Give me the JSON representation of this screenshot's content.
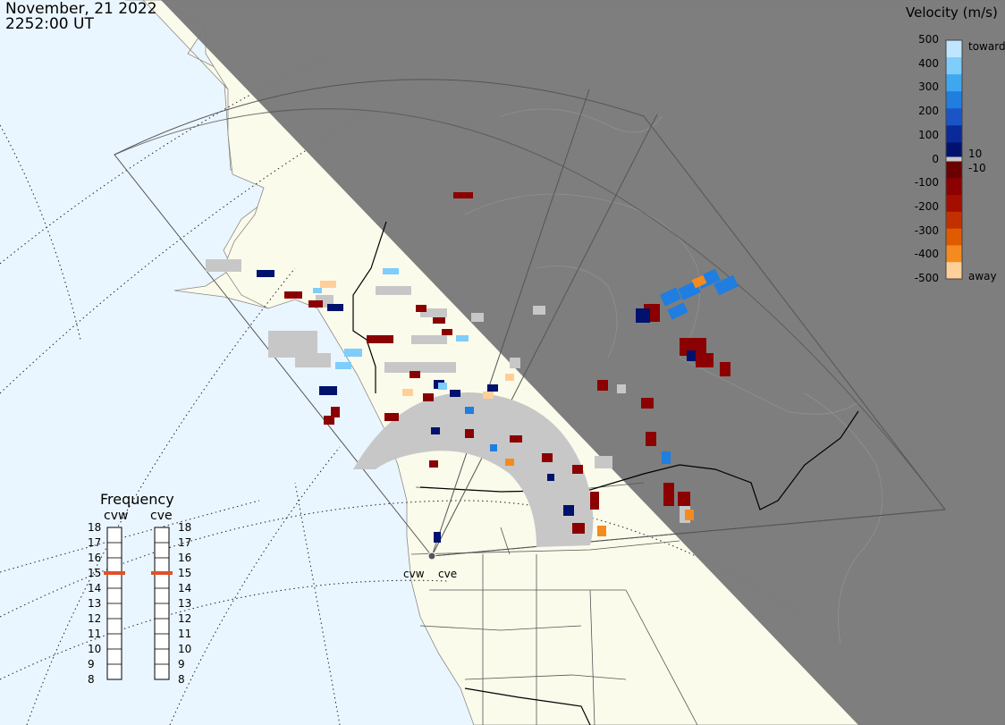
{
  "header": {
    "date": "November, 21 2022",
    "time": "2252:00 UT"
  },
  "colorbar": {
    "title": "Velocity (m/s)",
    "ticks": [
      "500",
      "400",
      "300",
      "200",
      "100",
      "0",
      "-100",
      "-200",
      "-300",
      "-400",
      "-500"
    ],
    "inner_positive": "10",
    "inner_negative": "-10",
    "label_toward": "toward",
    "label_away": "away",
    "colors_toward": [
      "#bfe6ff",
      "#7fcdfb",
      "#3fa7f0",
      "#1f7ee0",
      "#1a55c7",
      "#0a2a9a",
      "#00126e"
    ],
    "colors_away": [
      "#6b0000",
      "#8b0000",
      "#a40e00",
      "#c23000",
      "#e05a00",
      "#f58a1f",
      "#ffcf9a"
    ],
    "ground_scatter_color": "#c7c7c7"
  },
  "frequency": {
    "title": "Frequency",
    "radars": [
      {
        "name": "cvw",
        "active_mhz": 15
      },
      {
        "name": "cve",
        "active_mhz": 15
      }
    ],
    "scale": [
      "18",
      "17",
      "16",
      "15",
      "14",
      "13",
      "12",
      "11",
      "10",
      "9",
      "8"
    ],
    "marker_color": "#e0502a"
  },
  "sites": {
    "west": "cvw",
    "east": "cve"
  },
  "colors": {
    "land": "#fbfbeb",
    "ocean": "#eaf6ff",
    "night": "#7a7a7a"
  }
}
